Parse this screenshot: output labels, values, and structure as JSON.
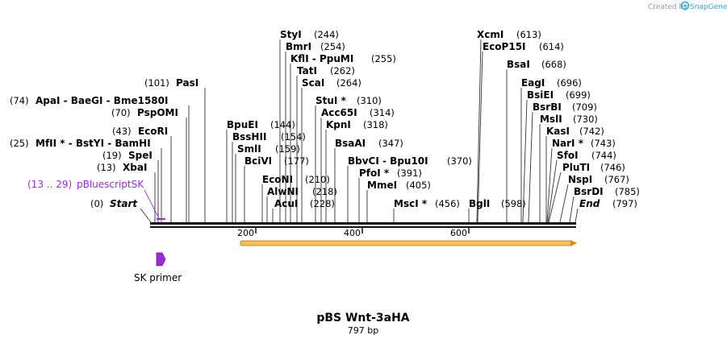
{
  "credit": {
    "prefix": "Created by",
    "brand": "SnapGene"
  },
  "title": "pBS Wnt-3aHA",
  "length_label": "797 bp",
  "sequence_length": 797,
  "ruler_ticks": [
    "200",
    "400",
    "600"
  ],
  "sites": [
    {
      "name": "StyI",
      "pos": 244,
      "pos_label": "(244)"
    },
    {
      "name": "BmrI",
      "pos": 254,
      "pos_label": "(254)"
    },
    {
      "name": "KflI - PpuMI",
      "pos": 255,
      "pos_label": "(255)"
    },
    {
      "name": "TatI",
      "pos": 262,
      "pos_label": "(262)"
    },
    {
      "name": "ScaI",
      "pos": 264,
      "pos_label": "(264)"
    },
    {
      "name": "StuI *",
      "pos": 310,
      "pos_label": "(310)"
    },
    {
      "name": "Acc65I",
      "pos": 314,
      "pos_label": "(314)"
    },
    {
      "name": "KpnI",
      "pos": 318,
      "pos_label": "(318)"
    },
    {
      "name": "BsaAI",
      "pos": 347,
      "pos_label": "(347)"
    },
    {
      "name": "BbvCI - Bpu10I",
      "pos": 370,
      "pos_label": "(370)"
    },
    {
      "name": "PfoI *",
      "pos": 391,
      "pos_label": "(391)"
    },
    {
      "name": "MmeI",
      "pos": 405,
      "pos_label": "(405)"
    },
    {
      "name": "MscI *",
      "pos": 456,
      "pos_label": "(456)"
    },
    {
      "name": "PasI",
      "pos": 101,
      "pos_label": "(101)"
    },
    {
      "name": "ApaI - BaeGI - Bme1580I",
      "pos": 74,
      "pos_label": "(74)"
    },
    {
      "name": "PspOMI",
      "pos": 70,
      "pos_label": "(70)"
    },
    {
      "name": "EcoRI",
      "pos": 43,
      "pos_label": "(43)"
    },
    {
      "name": "MfII * - BstYI - BamHI",
      "pos": 25,
      "pos_label": "(25)"
    },
    {
      "name": "SpeI",
      "pos": 19,
      "pos_label": "(19)"
    },
    {
      "name": "XbaI",
      "pos": 13,
      "pos_label": "(13)"
    },
    {
      "name": "BpuEI",
      "pos": 144,
      "pos_label": "(144)"
    },
    {
      "name": "BssHII",
      "pos": 154,
      "pos_label": "(154)"
    },
    {
      "name": "SmlI",
      "pos": 159,
      "pos_label": "(159)"
    },
    {
      "name": "BciVI",
      "pos": 177,
      "pos_label": "(177)"
    },
    {
      "name": "EcoNI",
      "pos": 210,
      "pos_label": "(210)"
    },
    {
      "name": "AlwNI",
      "pos": 218,
      "pos_label": "(218)"
    },
    {
      "name": "AcuI",
      "pos": 228,
      "pos_label": "(228)"
    },
    {
      "name": "XcmI",
      "pos": 613,
      "pos_label": "(613)"
    },
    {
      "name": "EcoP15I",
      "pos": 614,
      "pos_label": "(614)"
    },
    {
      "name": "BsaI",
      "pos": 668,
      "pos_label": "(668)"
    },
    {
      "name": "BglI",
      "pos": 598,
      "pos_label": "(598)"
    },
    {
      "name": "EagI",
      "pos": 696,
      "pos_label": "(696)"
    },
    {
      "name": "BsiEI",
      "pos": 699,
      "pos_label": "(699)"
    },
    {
      "name": "BsrBI",
      "pos": 709,
      "pos_label": "(709)"
    },
    {
      "name": "MslI",
      "pos": 730,
      "pos_label": "(730)"
    },
    {
      "name": "KasI",
      "pos": 742,
      "pos_label": "(742)"
    },
    {
      "name": "NarI *",
      "pos": 743,
      "pos_label": "(743)"
    },
    {
      "name": "SfoI",
      "pos": 744,
      "pos_label": "(744)"
    },
    {
      "name": "PluTI",
      "pos": 746,
      "pos_label": "(746)"
    },
    {
      "name": "NspI",
      "pos": 767,
      "pos_label": "(767)"
    },
    {
      "name": "BsrDI",
      "pos": 785,
      "pos_label": "(785)"
    }
  ],
  "ends": [
    {
      "name": "Start",
      "pos": 0,
      "pos_label": "(0)"
    },
    {
      "name": "End",
      "pos": 797,
      "pos_label": "(797)"
    }
  ],
  "feature_label": {
    "name": "pBluescriptSK",
    "range": "(13 .. 29)",
    "start": 13,
    "end": 29
  },
  "primer": {
    "name": "SK primer",
    "start": 13,
    "end": 29
  },
  "orf": {
    "start": 170,
    "end": 797,
    "color": "#f0a020"
  },
  "colors": {
    "feature": "#9a2bd8",
    "orf": "#f0a020",
    "brand": "#2aa6e8"
  }
}
